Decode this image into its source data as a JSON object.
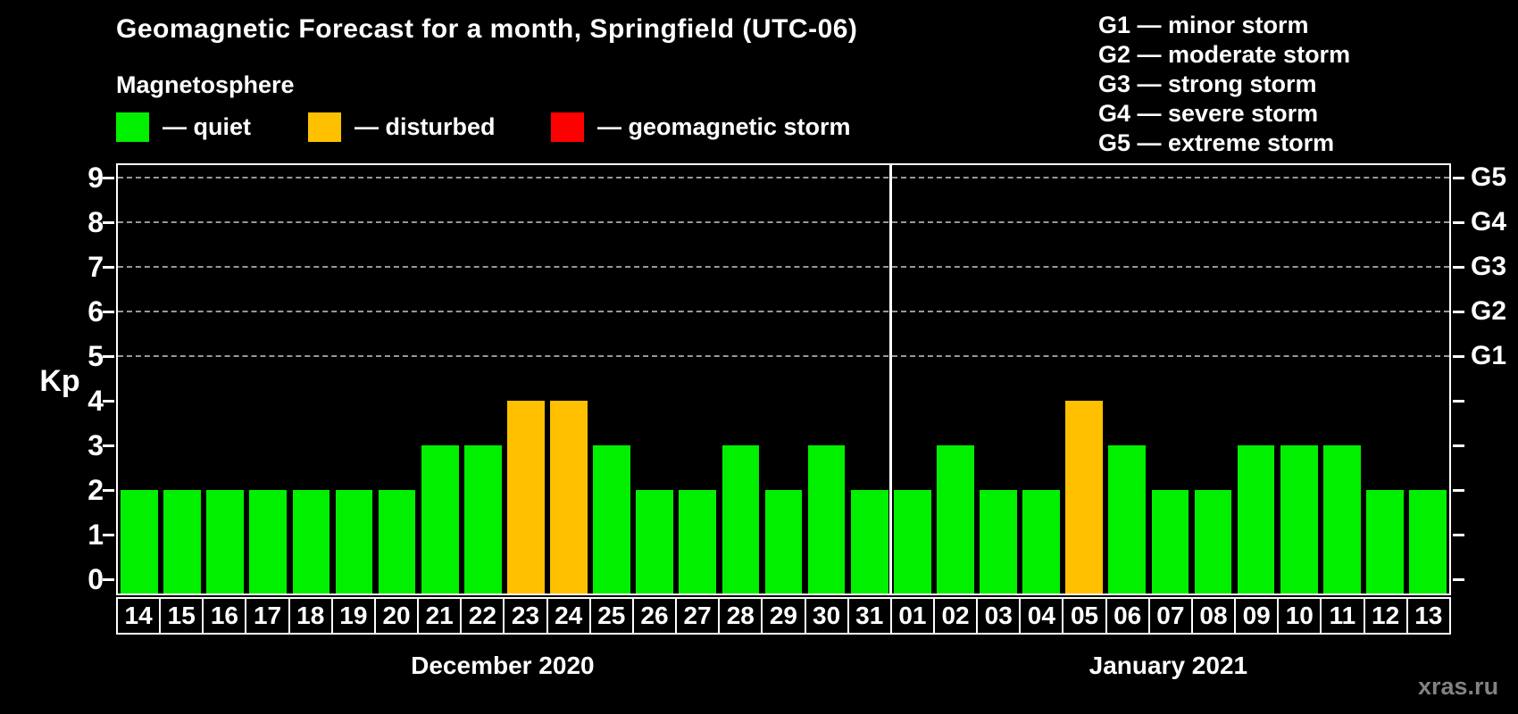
{
  "title": "Geomagnetic Forecast for a month, Springfield (UTC-06)",
  "subtitle": "Magnetosphere",
  "legend": {
    "items": [
      {
        "status": "quiet",
        "color": "#00F000",
        "label": "— quiet"
      },
      {
        "status": "disturbed",
        "color": "#FFC000",
        "label": "— disturbed"
      },
      {
        "status": "storm",
        "color": "#FF0000",
        "label": "— geomagnetic storm"
      }
    ]
  },
  "g_legend": [
    "G1 — minor storm",
    "G2 — moderate storm",
    "G3 — strong storm",
    "G4 — severe storm",
    "G5 — extreme storm"
  ],
  "axis": {
    "kp_label": "Kp",
    "kp_ticks": [
      9,
      8,
      7,
      6,
      5,
      4,
      3,
      2,
      1,
      0
    ],
    "g_ticks": [
      {
        "label": "G5",
        "kp": 9
      },
      {
        "label": "G4",
        "kp": 8
      },
      {
        "label": "G3",
        "kp": 7
      },
      {
        "label": "G2",
        "kp": 6
      },
      {
        "label": "G1",
        "kp": 5
      }
    ]
  },
  "watermark": "xras.ru",
  "chart_data": {
    "type": "bar",
    "title": "Geomagnetic Forecast for a month, Springfield (UTC-06)",
    "ylabel": "Kp",
    "ylim": [
      0,
      9
    ],
    "grid": "dashed horizontal at Kp 5-9",
    "gridlines_at": [
      5,
      6,
      7,
      8,
      9
    ],
    "legend_position": "top-left",
    "color_map": {
      "quiet": "#00F000",
      "disturbed": "#FFC000",
      "storm": "#FF0000"
    },
    "series": [
      {
        "name": "December 2020",
        "categories": [
          "14",
          "15",
          "16",
          "17",
          "18",
          "19",
          "20",
          "21",
          "22",
          "23",
          "24",
          "25",
          "26",
          "27",
          "28",
          "29",
          "30",
          "31"
        ],
        "values": [
          2,
          2,
          2,
          2,
          2,
          2,
          2,
          3,
          3,
          4,
          4,
          3,
          2,
          2,
          3,
          2,
          3,
          2
        ],
        "status": [
          "quiet",
          "quiet",
          "quiet",
          "quiet",
          "quiet",
          "quiet",
          "quiet",
          "quiet",
          "quiet",
          "disturbed",
          "disturbed",
          "quiet",
          "quiet",
          "quiet",
          "quiet",
          "quiet",
          "quiet",
          "quiet"
        ]
      },
      {
        "name": "January 2021",
        "categories": [
          "01",
          "02",
          "03",
          "04",
          "05",
          "06",
          "07",
          "08",
          "09",
          "10",
          "11",
          "12",
          "13"
        ],
        "values": [
          2,
          3,
          2,
          2,
          4,
          3,
          2,
          2,
          3,
          3,
          3,
          2,
          2
        ],
        "status": [
          "quiet",
          "quiet",
          "quiet",
          "quiet",
          "disturbed",
          "quiet",
          "quiet",
          "quiet",
          "quiet",
          "quiet",
          "quiet",
          "quiet",
          "quiet"
        ]
      }
    ]
  }
}
